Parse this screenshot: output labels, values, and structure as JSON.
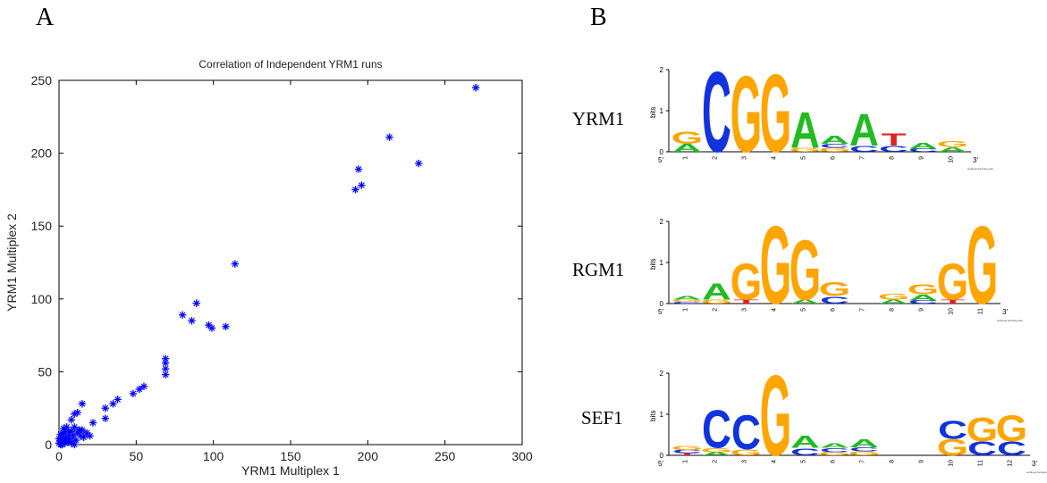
{
  "panels": {
    "a": "A",
    "b": "B"
  },
  "chart_data": {
    "type": "scatter",
    "title": "Correlation of Independent YRM1 runs",
    "xlabel": "YRM1 Multiplex 1",
    "ylabel": "YRM1 Multiplex 2",
    "xlim": [
      0,
      300
    ],
    "ylim": [
      0,
      250
    ],
    "xticks": [
      0,
      50,
      100,
      150,
      200,
      250,
      300
    ],
    "yticks": [
      0,
      50,
      100,
      150,
      200,
      250
    ],
    "marker": "*",
    "color": "#0000ff",
    "grid": false,
    "legend": "none",
    "points": [
      [
        270,
        245
      ],
      [
        214,
        211
      ],
      [
        233,
        193
      ],
      [
        194,
        189
      ],
      [
        196,
        178
      ],
      [
        192,
        175
      ],
      [
        114,
        124
      ],
      [
        89,
        97
      ],
      [
        80,
        89
      ],
      [
        86,
        85
      ],
      [
        97,
        82
      ],
      [
        99,
        80
      ],
      [
        108,
        81
      ],
      [
        69,
        59
      ],
      [
        69,
        56
      ],
      [
        69,
        52
      ],
      [
        69,
        48
      ],
      [
        55,
        40
      ],
      [
        52,
        38
      ],
      [
        48,
        35
      ],
      [
        38,
        31
      ],
      [
        35,
        28
      ],
      [
        30,
        25
      ],
      [
        30,
        18
      ],
      [
        22,
        15
      ],
      [
        15,
        28
      ],
      [
        12,
        22
      ],
      [
        10,
        21
      ],
      [
        8,
        17
      ],
      [
        18,
        8
      ],
      [
        16,
        5
      ],
      [
        13,
        10
      ],
      [
        10,
        12
      ],
      [
        8,
        9
      ],
      [
        6,
        6
      ],
      [
        5,
        3
      ],
      [
        4,
        1
      ],
      [
        3,
        5
      ],
      [
        2,
        2
      ],
      [
        1,
        0
      ],
      [
        0,
        1
      ],
      [
        1,
        3
      ],
      [
        2,
        6
      ],
      [
        3,
        8
      ],
      [
        4,
        10
      ],
      [
        6,
        2
      ],
      [
        7,
        4
      ],
      [
        9,
        6
      ],
      [
        11,
        3
      ],
      [
        12,
        8
      ],
      [
        14,
        6
      ],
      [
        5,
        12
      ],
      [
        3,
        11
      ],
      [
        1,
        7
      ],
      [
        0,
        4
      ],
      [
        2,
        0
      ],
      [
        8,
        1
      ],
      [
        10,
        0
      ],
      [
        6,
        9
      ],
      [
        4,
        4
      ],
      [
        15,
        10
      ],
      [
        20,
        6
      ]
    ]
  },
  "logos": {
    "yaxis_label": "bits",
    "tick_2": "2",
    "tick_1": "1",
    "tick_0": "0",
    "end_5": "5'",
    "end_3": "3'",
    "credit": "weblogo.berkeley.edu",
    "motifs": [
      {
        "name": "YRM1",
        "positions": [
          [
            [
              "A",
              0.2
            ],
            [
              "G",
              0.3
            ]
          ],
          [
            [
              "C",
              2.0
            ]
          ],
          [
            [
              "G",
              1.9
            ]
          ],
          [
            [
              "G",
              1.95
            ]
          ],
          [
            [
              "G",
              0.1
            ],
            [
              "A",
              0.9
            ]
          ],
          [
            [
              "G",
              0.1
            ],
            [
              "C",
              0.1
            ],
            [
              "A",
              0.2
            ]
          ],
          [
            [
              "C",
              0.15
            ],
            [
              "A",
              0.8
            ]
          ],
          [
            [
              "C",
              0.15
            ],
            [
              "T",
              0.3
            ]
          ],
          [
            [
              "C",
              0.08
            ],
            [
              "A",
              0.15
            ]
          ],
          [
            [
              "A",
              0.12
            ],
            [
              "G",
              0.15
            ]
          ]
        ]
      },
      {
        "name": "RGM1",
        "positions": [
          [
            [
              "C",
              0.04
            ],
            [
              "G",
              0.06
            ],
            [
              "A",
              0.08
            ]
          ],
          [
            [
              "G",
              0.1
            ],
            [
              "A",
              0.4
            ]
          ],
          [
            [
              "T",
              0.1
            ],
            [
              "G",
              0.9
            ]
          ],
          [
            [
              "G",
              1.95
            ]
          ],
          [
            [
              "A",
              0.1
            ],
            [
              "G",
              1.5
            ]
          ],
          [
            [
              "C",
              0.18
            ],
            [
              "G",
              0.35
            ]
          ],
          [],
          [
            [
              "A",
              0.1
            ],
            [
              "G",
              0.15
            ]
          ],
          [
            [
              "C",
              0.08
            ],
            [
              "A",
              0.15
            ],
            [
              "G",
              0.25
            ]
          ],
          [
            [
              "T",
              0.1
            ],
            [
              "G",
              0.9
            ]
          ],
          [
            [
              "G",
              1.95
            ]
          ]
        ]
      },
      {
        "name": "SEF1",
        "positions": [
          [
            [
              "T",
              0.05
            ],
            [
              "C",
              0.08
            ],
            [
              "G",
              0.1
            ]
          ],
          [
            [
              "A",
              0.08
            ],
            [
              "G",
              0.1
            ],
            [
              "C",
              0.95
            ]
          ],
          [
            [
              "G",
              0.15
            ],
            [
              "C",
              0.85
            ]
          ],
          [
            [
              "G",
              2.0
            ]
          ],
          [
            [
              "C",
              0.18
            ],
            [
              "A",
              0.3
            ]
          ],
          [
            [
              "G",
              0.08
            ],
            [
              "C",
              0.1
            ],
            [
              "A",
              0.12
            ]
          ],
          [
            [
              "G",
              0.1
            ],
            [
              "C",
              0.1
            ],
            [
              "A",
              0.2
            ]
          ],
          [],
          [],
          [
            [
              "G",
              0.4
            ],
            [
              "C",
              0.45
            ]
          ],
          [
            [
              "C",
              0.35
            ],
            [
              "G",
              0.6
            ]
          ],
          [
            [
              "C",
              0.35
            ],
            [
              "G",
              0.65
            ]
          ]
        ]
      }
    ]
  },
  "colors": {
    "A": "#22bb22",
    "C": "#1133dd",
    "G": "#ffa500",
    "T": "#dd2222"
  }
}
